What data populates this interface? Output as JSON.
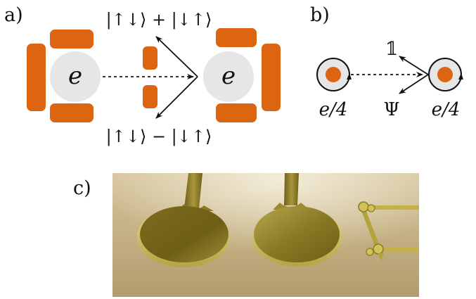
{
  "panels": {
    "a": {
      "label": "a)",
      "charge_left": "e",
      "charge_right": "e",
      "state_top": "|↑↓⟩ + |↓↑⟩",
      "state_bottom": "|↑↓⟩ − |↓↑⟩"
    },
    "b": {
      "label": "b)",
      "channel_identity": "𝟙",
      "channel_psi": "Ψ",
      "charge_left": "e/4",
      "charge_right": "e/4"
    },
    "c": {
      "label": "c)"
    }
  },
  "colors": {
    "gate_orange": "#dd6410",
    "dot_gray": "#e6e6e6",
    "arrow_dark": "#111111",
    "gold_surface": "#8c7a22",
    "background_haze": "#c8b488"
  }
}
